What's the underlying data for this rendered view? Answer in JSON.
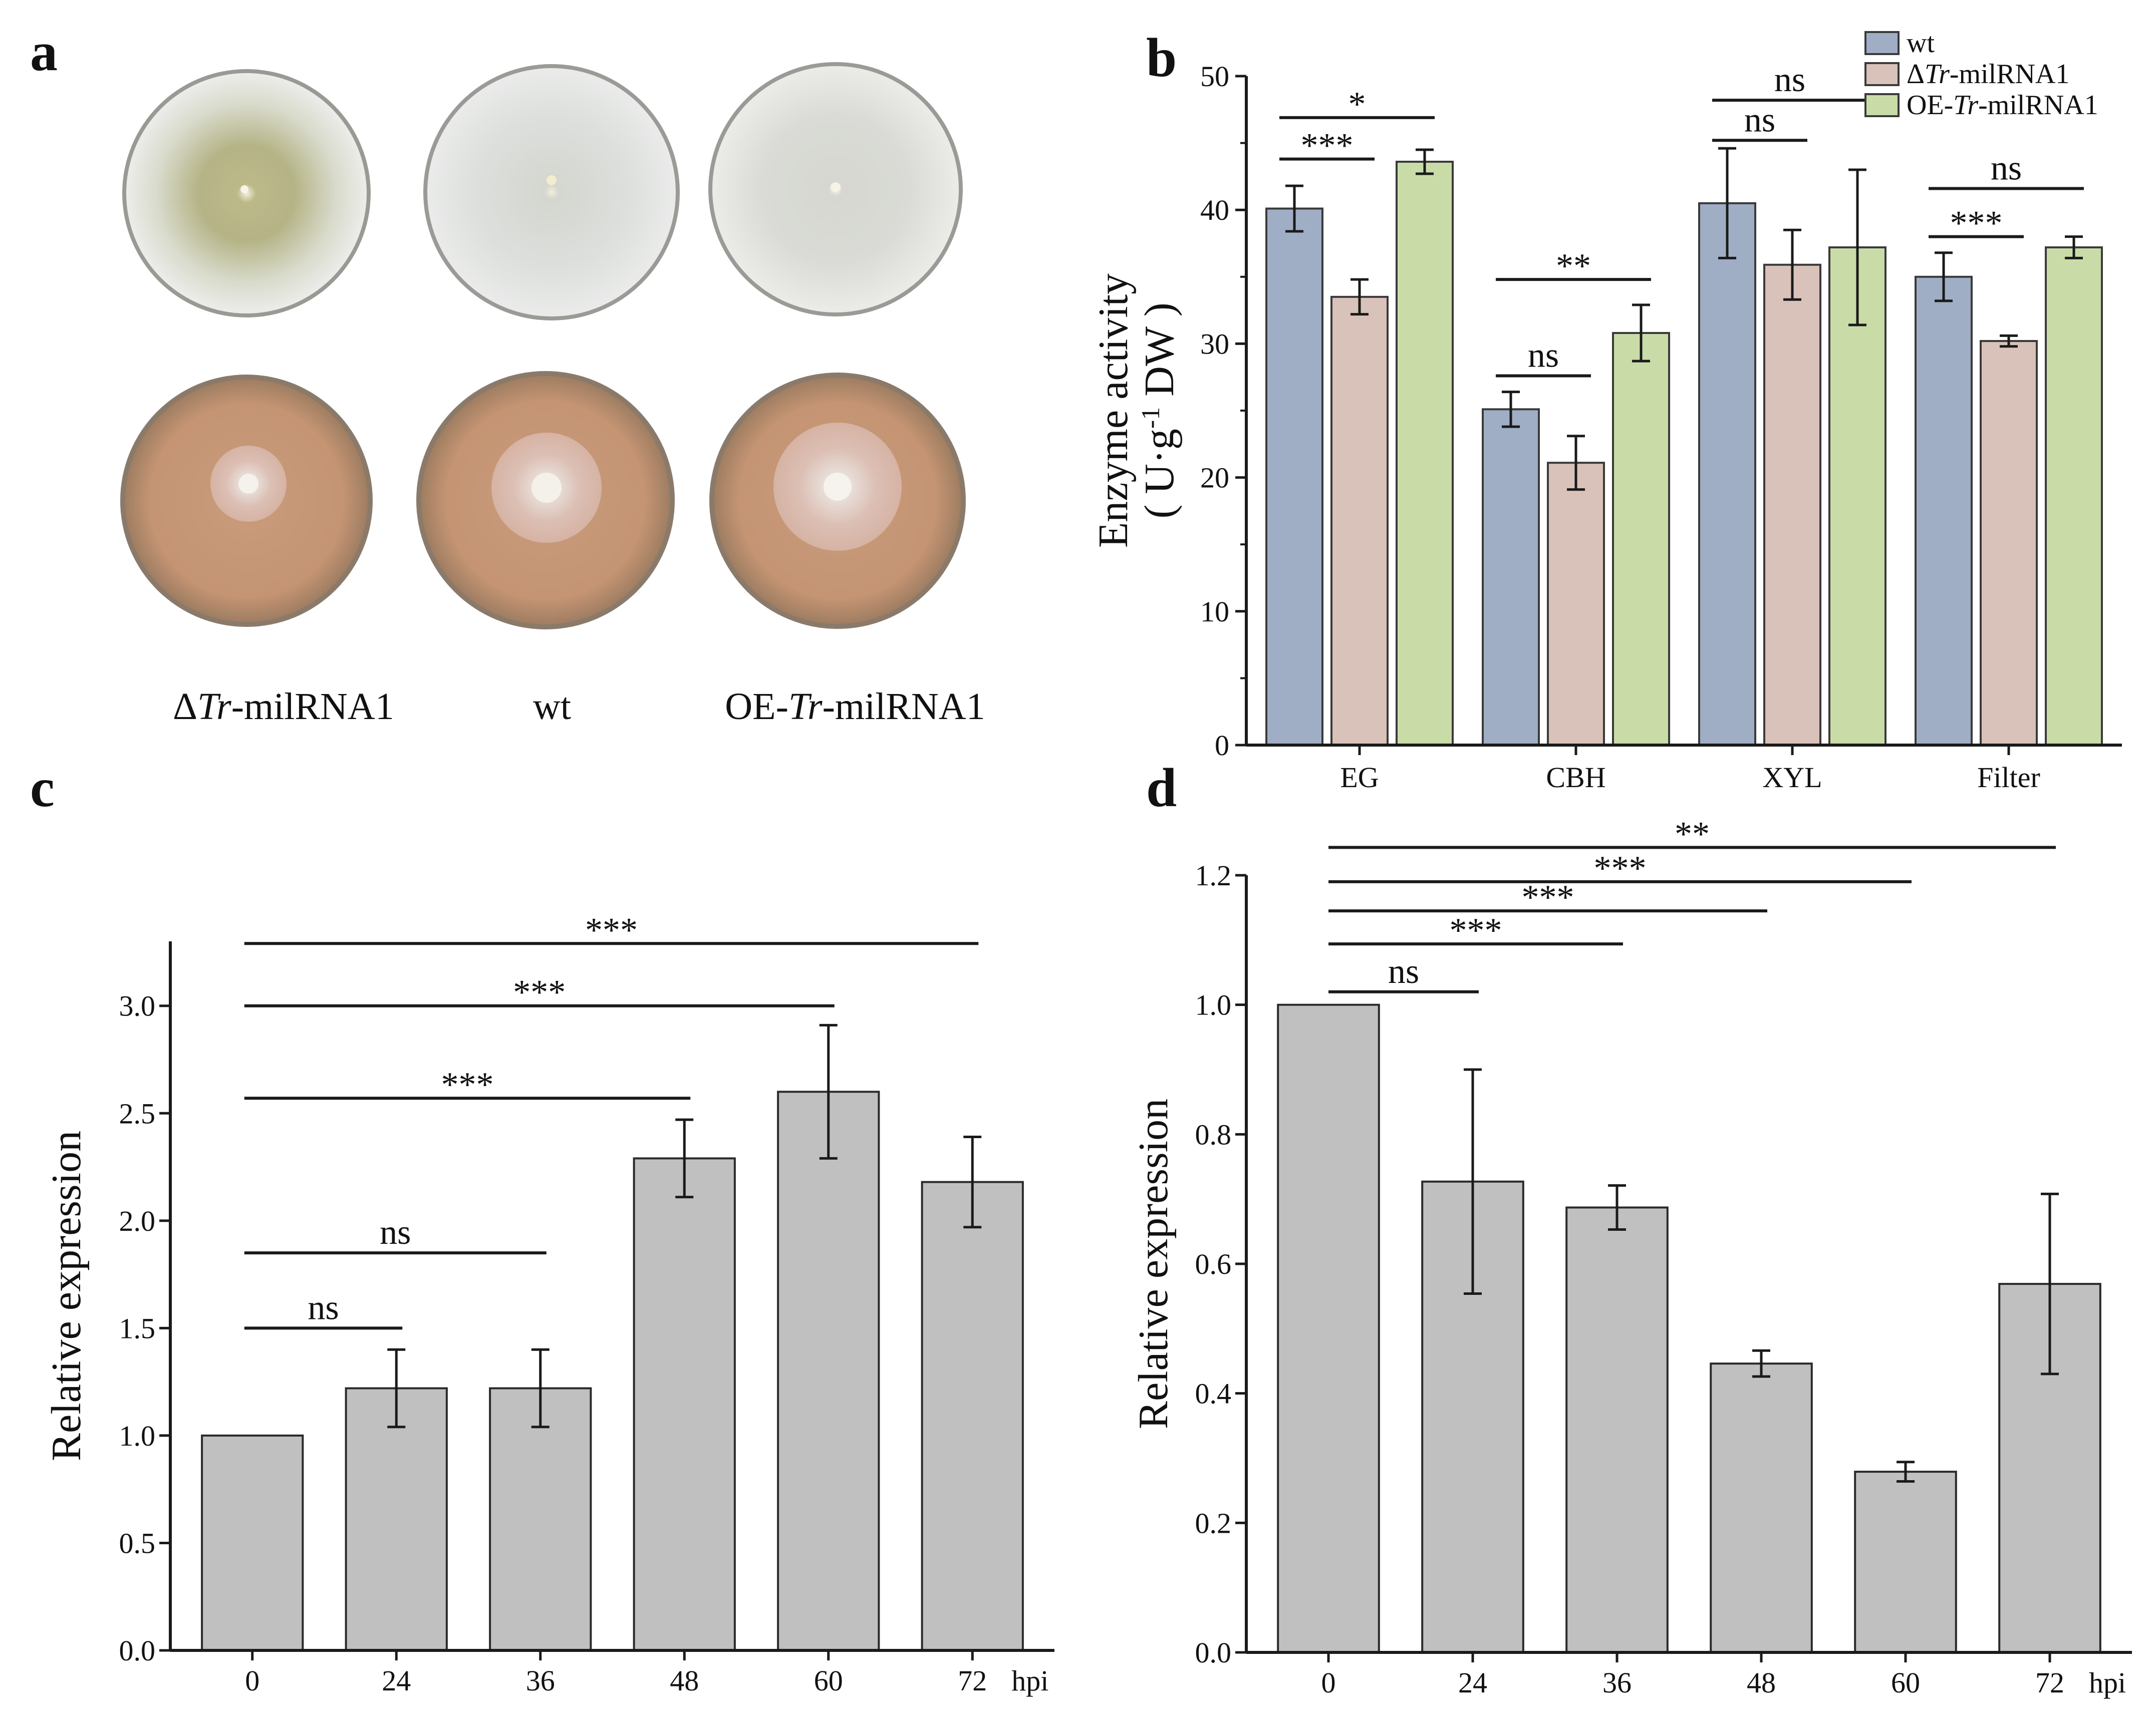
{
  "colors": {
    "wt": "#9faec5",
    "delta": "#d9c2b9",
    "oe": "#c9dca8",
    "grey_bar": "#c0c0c0",
    "axis": "#1a1a1a",
    "plate_top_bg": "#e6e7e2",
    "plate_bottom_bg": "#c79a7a"
  },
  "panel_a": {
    "letter": "a",
    "labels": [
      {
        "prefix": "Δ",
        "italic": "Tr",
        "suffix": "-milRNA1"
      },
      {
        "prefix": "wt",
        "italic": "",
        "suffix": ""
      },
      {
        "prefix": "OE-",
        "italic": "Tr",
        "suffix": "-milRNA1"
      }
    ]
  },
  "chart_data": [
    {
      "panel": "b",
      "type": "bar",
      "categories": [
        "EG",
        "CBH",
        "XYL",
        "Filter"
      ],
      "series": [
        {
          "name": "wt",
          "legend": {
            "prefix": "wt",
            "italic": "",
            "suffix": ""
          },
          "values": [
            40.1,
            25.1,
            40.5,
            35.0
          ],
          "errors": [
            1.7,
            1.3,
            4.1,
            1.8
          ]
        },
        {
          "name": "ΔTr-milRNA1",
          "legend": {
            "prefix": "Δ",
            "italic": "Tr",
            "suffix": "-milRNA1"
          },
          "values": [
            33.5,
            21.1,
            35.9,
            30.2
          ],
          "errors": [
            1.3,
            2.0,
            2.6,
            0.4
          ]
        },
        {
          "name": "OE-Tr-milRNA1",
          "legend": {
            "prefix": "OE-",
            "italic": "Tr",
            "suffix": "-milRNA1"
          },
          "values": [
            43.6,
            30.8,
            37.2,
            37.2
          ],
          "errors": [
            0.9,
            2.1,
            5.8,
            0.8
          ]
        }
      ],
      "ylabel_line1": "Enzyme activity",
      "ylabel_line2": {
        "open": "( U·g",
        "sup": "-1",
        "close": " DW )"
      },
      "xlabel": "",
      "ylim": [
        0,
        50
      ],
      "yticks": [
        0,
        10,
        20,
        30,
        40,
        50
      ],
      "legend_position": "top-right",
      "significance": [
        {
          "group": 0,
          "from": 0,
          "to": 1,
          "y": 43.8,
          "label": "***"
        },
        {
          "group": 0,
          "from": 0,
          "to": 2,
          "y": 46.9,
          "label": "*"
        },
        {
          "group": 1,
          "from": 0,
          "to": 1,
          "y": 27.6,
          "label": "ns"
        },
        {
          "group": 1,
          "from": 0,
          "to": 2,
          "y": 34.8,
          "label": "**"
        },
        {
          "group": 2,
          "from": 0,
          "to": 1,
          "y": 45.2,
          "label": "ns"
        },
        {
          "group": 2,
          "from": 0,
          "to": 2,
          "y": 48.2,
          "label": "ns"
        },
        {
          "group": 3,
          "from": 0,
          "to": 1,
          "y": 38.0,
          "label": "***"
        },
        {
          "group": 3,
          "from": 0,
          "to": 2,
          "y": 41.6,
          "label": "ns"
        }
      ]
    },
    {
      "panel": "c",
      "type": "bar",
      "categories": [
        "0",
        "24",
        "36",
        "48",
        "60",
        "72"
      ],
      "values": [
        1.0,
        1.22,
        1.22,
        2.29,
        2.6,
        2.18
      ],
      "errors": [
        0.0,
        0.18,
        0.18,
        0.18,
        0.31,
        0.21
      ],
      "ylabel": "Relative  expression",
      "xlabel": "hpi",
      "ylim": [
        0,
        3.3
      ],
      "yticks": [
        0.0,
        0.5,
        1.0,
        1.5,
        2.0,
        2.5,
        3.0
      ],
      "tick_labels": [
        "0.0",
        "0.5",
        "1.0",
        "1.5",
        "2.0",
        "2.5",
        "3.0"
      ],
      "significance": [
        {
          "from": 0,
          "to": 1,
          "y": 1.5,
          "label": "ns"
        },
        {
          "from": 0,
          "to": 2,
          "y": 1.85,
          "label": "ns"
        },
        {
          "from": 0,
          "to": 3,
          "y": 2.57,
          "label": "***"
        },
        {
          "from": 0,
          "to": 4,
          "y": 3.0,
          "label": "***"
        },
        {
          "from": 0,
          "to": 5,
          "y": 3.29,
          "label": "***"
        }
      ]
    },
    {
      "panel": "d",
      "type": "bar",
      "categories": [
        "0",
        "24",
        "36",
        "48",
        "60",
        "72"
      ],
      "values": [
        1.0,
        0.727,
        0.687,
        0.446,
        0.279,
        0.569
      ],
      "errors": [
        0.0,
        0.173,
        0.034,
        0.02,
        0.015,
        0.139
      ],
      "ylabel": "Relative  expression",
      "xlabel": "hpi",
      "ylim": [
        0,
        1.2
      ],
      "yticks": [
        0.0,
        0.2,
        0.4,
        0.6,
        0.8,
        1.0,
        1.2
      ],
      "tick_labels": [
        "0.0",
        "0.2",
        "0.4",
        "0.6",
        "0.8",
        "1.0",
        "1.2"
      ],
      "significance": [
        {
          "from": 0,
          "to": 1,
          "y": 1.02,
          "label": "ns"
        },
        {
          "from": 0,
          "to": 2,
          "y": 1.094,
          "label": "***"
        },
        {
          "from": 0,
          "to": 3,
          "y": 1.145,
          "label": "***"
        },
        {
          "from": 0,
          "to": 4,
          "y": 1.19,
          "label": "***"
        },
        {
          "from": 0,
          "to": 5,
          "y": 1.243,
          "label": "**"
        }
      ]
    }
  ]
}
